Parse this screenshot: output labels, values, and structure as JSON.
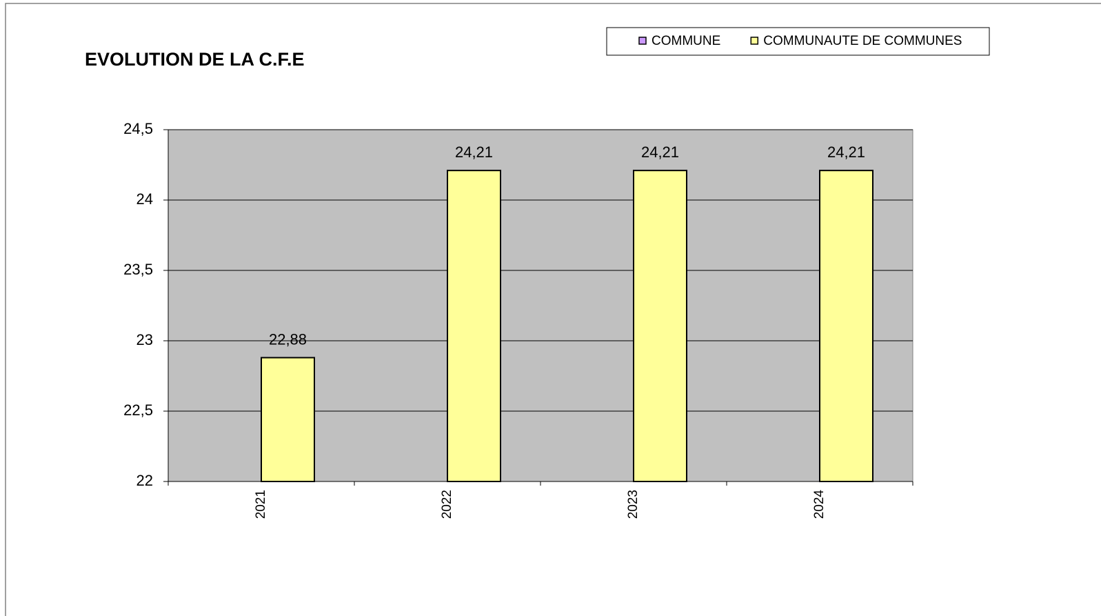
{
  "chart_data": {
    "type": "bar",
    "title": "EVOLUTION DE LA C.F.E",
    "categories": [
      "2021",
      "2022",
      "2023",
      "2024"
    ],
    "series": [
      {
        "name": "COMMUNE",
        "color": "#cc99ff",
        "values": [
          null,
          null,
          null,
          null
        ]
      },
      {
        "name": "COMMUNAUTE DE COMMUNES",
        "color": "#ffff99",
        "values": [
          22.88,
          24.21,
          24.21,
          24.21
        ],
        "value_labels": [
          "22,88",
          "24,21",
          "24,21",
          "24,21"
        ]
      }
    ],
    "ylim": [
      22,
      24.5
    ],
    "yticks": [
      22,
      {
        "value": 22.5,
        "label": "22,5"
      },
      23,
      {
        "value": 23.5,
        "label": "23,5"
      },
      24,
      {
        "value": 24.5,
        "label": "24,5"
      }
    ],
    "grid": true,
    "legend": "top",
    "plot_background": "#c0c0c0"
  }
}
